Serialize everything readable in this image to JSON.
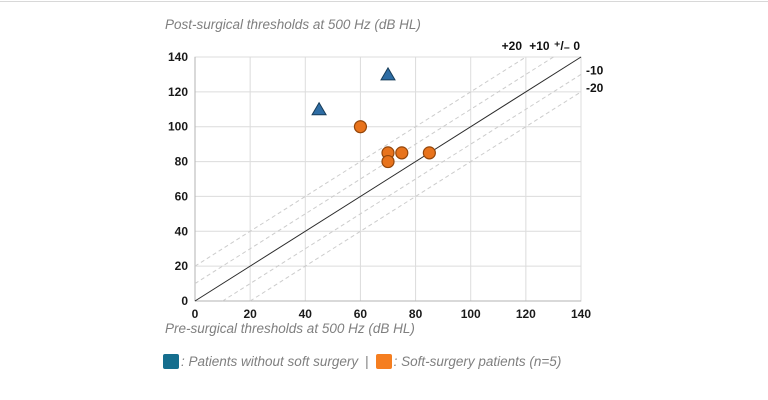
{
  "window": {
    "background": "#ffffff",
    "top_border_color": "#d8d8d8"
  },
  "chart_data": {
    "type": "scatter",
    "title": "Post-surgical thresholds at 500 Hz (dB HL)",
    "xlabel": "Pre-surgical thresholds at 500 Hz (dB HL)",
    "xlim": [
      0,
      140
    ],
    "ylim": [
      0,
      140
    ],
    "xticks": [
      0,
      20,
      40,
      60,
      80,
      100,
      120,
      140
    ],
    "yticks": [
      0,
      20,
      40,
      60,
      80,
      100,
      120,
      140
    ],
    "grid": true,
    "legend_position": "bottom",
    "reference_lines": [
      {
        "offset": 20,
        "label": "+20",
        "style": "dashed",
        "label_side": "top"
      },
      {
        "offset": 10,
        "label": "+10",
        "style": "dashed",
        "label_side": "top"
      },
      {
        "offset": 0,
        "label": "⁺/₋ 0",
        "style": "solid",
        "label_side": "top"
      },
      {
        "offset": -10,
        "label": "-10",
        "style": "dashed",
        "label_side": "right"
      },
      {
        "offset": -20,
        "label": "-20",
        "style": "dashed",
        "label_side": "right"
      }
    ],
    "series": [
      {
        "name": "Patients without soft surgery",
        "marker": "triangle",
        "fill": "#2e6da4",
        "edge": "#173c59",
        "points": [
          [
            45,
            110
          ],
          [
            70,
            130
          ]
        ]
      },
      {
        "name": "Soft-surgery patients (n=5)",
        "marker": "circle",
        "fill": "#e8731c",
        "edge": "#94460a",
        "points": [
          [
            60,
            100
          ],
          [
            70,
            85
          ],
          [
            70,
            80
          ],
          [
            75,
            85
          ],
          [
            85,
            85
          ]
        ]
      }
    ],
    "colors": {
      "grid": "#dcdcdc",
      "axis": "#b3b3b3",
      "ref_dashed": "#cccccc",
      "ref_solid": "#2b2b2b",
      "tick_label": "#1a1a1a",
      "ref_label": "#111111"
    }
  },
  "legend": {
    "separator": "|",
    "items": [
      {
        "color": "#156e8e",
        "label": ": Patients without soft surgery"
      },
      {
        "color": "#f57e20",
        "label": ": Soft-surgery patients (n=5)"
      }
    ]
  }
}
